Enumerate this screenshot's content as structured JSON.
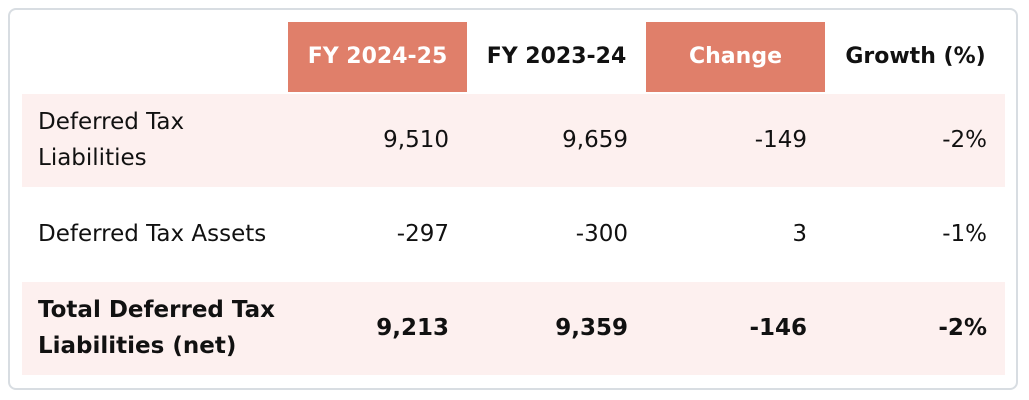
{
  "table": {
    "columns": [
      "FY 2024-25",
      "FY 2023-24",
      "Change",
      "Growth (%)"
    ],
    "rows": [
      {
        "label": "Deferred Tax Liabilities",
        "values": [
          "9,510",
          "9,659",
          "-149",
          "-2%"
        ]
      },
      {
        "label": "Deferred Tax Assets",
        "values": [
          "-297",
          "-300",
          "3",
          "-1%"
        ]
      },
      {
        "label": "Total Deferred Tax Liabilities (net)",
        "values": [
          "9,213",
          "9,359",
          "-146",
          "-2%"
        ]
      }
    ]
  }
}
